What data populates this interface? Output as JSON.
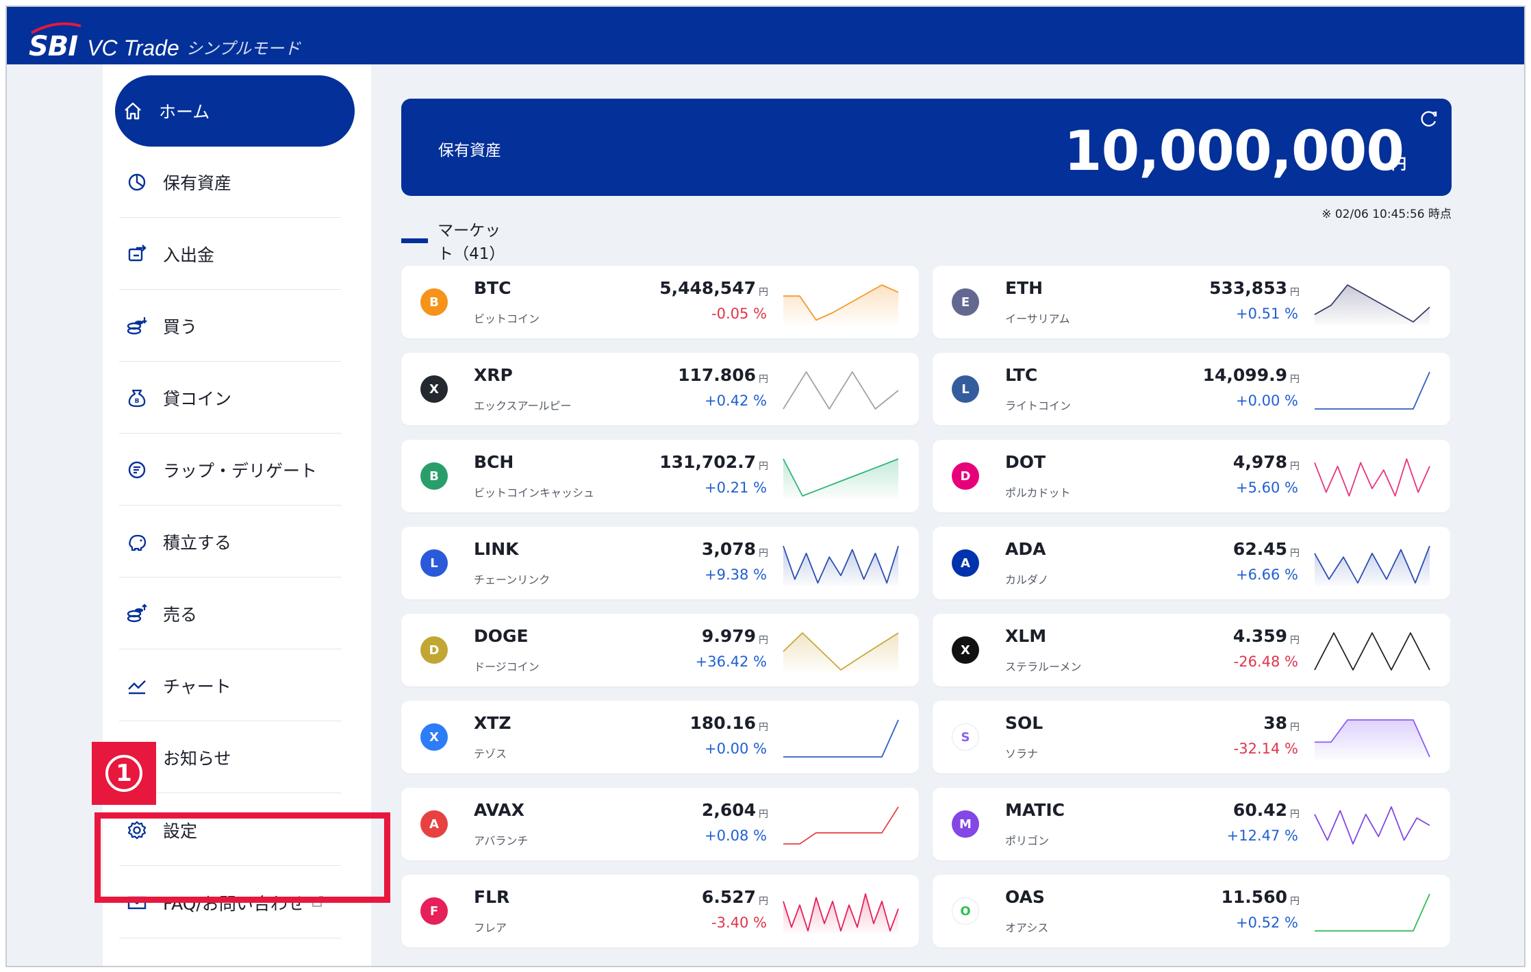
{
  "app": {
    "logo_text": "SBI",
    "brand": "VC Trade",
    "mode": "シンプルモード"
  },
  "sidebar": {
    "items": [
      {
        "label": "ホーム",
        "icon": "home-icon",
        "active": true
      },
      {
        "label": "保有資産",
        "icon": "pie-chart-icon"
      },
      {
        "label": "入出金",
        "icon": "transfer-icon"
      },
      {
        "label": "買う",
        "icon": "coins-buy-icon"
      },
      {
        "label": "貸コイン",
        "icon": "money-bag-icon"
      },
      {
        "label": "ラップ・デリゲート",
        "icon": "wrap-icon"
      },
      {
        "label": "積立する",
        "icon": "piggy-bank-icon"
      },
      {
        "label": "売る",
        "icon": "coins-sell-icon"
      },
      {
        "label": "チャート",
        "icon": "chart-line-icon"
      },
      {
        "label": "お知らせ",
        "icon": "bell-icon"
      },
      {
        "label": "設定",
        "icon": "gear-icon"
      },
      {
        "label": "FAQ/お問い合わせ",
        "icon": "mail-icon"
      }
    ]
  },
  "annotation": {
    "number": "1"
  },
  "assets": {
    "label": "保有資産",
    "value": "10,000,000",
    "unit": "円",
    "timestamp": "※ 02/06 10:45:56 時点"
  },
  "market": {
    "title": "マーケット（41）",
    "yen": "円",
    "coins": [
      {
        "symbol": "BTC",
        "name": "ビットコイン",
        "price": "5,448,547",
        "change": "-0.05 %",
        "dir": "down",
        "color": "#f7931a",
        "line": "#f39a2b",
        "fill": true,
        "spark": [
          0.3,
          0.3,
          0.95,
          0.75,
          0.5,
          0.25,
          0.0,
          0.2
        ]
      },
      {
        "symbol": "ETH",
        "name": "イーサリアム",
        "price": "533,853",
        "change": "+0.51 %",
        "dir": "up",
        "color": "#62688f",
        "line": "#3a3f6b",
        "fill": true,
        "spark": [
          0.8,
          0.55,
          0.0,
          0.25,
          0.5,
          0.75,
          1.0,
          0.6
        ]
      },
      {
        "symbol": "XRP",
        "name": "エックスアールピー",
        "price": "117.806",
        "change": "+0.42 %",
        "dir": "up",
        "color": "#23292f",
        "line": "#9ea3aa",
        "fill": false,
        "spark": [
          1.0,
          0.0,
          1.0,
          0.0,
          1.0,
          0.5
        ]
      },
      {
        "symbol": "LTC",
        "name": "ライトコイン",
        "price": "14,099.9",
        "change": "+0.00 %",
        "dir": "up",
        "color": "#345d9d",
        "line": "#2f5fc2",
        "fill": false,
        "spark": [
          1.0,
          1.0,
          1.0,
          1.0,
          1.0,
          1.0,
          1.0,
          0.0
        ]
      },
      {
        "symbol": "BCH",
        "name": "ビットコインキャッシュ",
        "price": "131,702.7",
        "change": "+0.21 %",
        "dir": "up",
        "color": "#2a9e6a",
        "line": "#2fb37a",
        "fill": true,
        "spark": [
          0.0,
          1.0,
          0.8,
          0.6,
          0.4,
          0.2,
          0.0
        ]
      },
      {
        "symbol": "DOT",
        "name": "ポルカドット",
        "price": "4,978",
        "change": "+5.60 %",
        "dir": "up",
        "color": "#e6007a",
        "line": "#e8337f",
        "fill": false,
        "spark": [
          0.1,
          0.9,
          0.2,
          1.0,
          0.1,
          0.8,
          0.3,
          1.0,
          0.0,
          0.9,
          0.2
        ]
      },
      {
        "symbol": "LINK",
        "name": "チェーンリンク",
        "price": "3,078",
        "change": "+9.38 %",
        "dir": "up",
        "color": "#2a5ada",
        "line": "#2a4fb0",
        "fill": true,
        "spark": [
          0.0,
          0.9,
          0.2,
          1.0,
          0.3,
          0.8,
          0.1,
          0.9,
          0.2,
          1.0,
          0.0
        ]
      },
      {
        "symbol": "ADA",
        "name": "カルダノ",
        "price": "62.45",
        "change": "+6.66 %",
        "dir": "up",
        "color": "#0033ad",
        "line": "#2a4fb0",
        "fill": true,
        "spark": [
          0.2,
          0.9,
          0.3,
          1.0,
          0.2,
          0.9,
          0.1,
          1.0,
          0.0
        ]
      },
      {
        "symbol": "DOGE",
        "name": "ドージコイン",
        "price": "9.979",
        "change": "+36.42 %",
        "dir": "up",
        "color": "#c2a633",
        "line": "#c9a73a",
        "fill": true,
        "spark": [
          0.5,
          0.0,
          0.5,
          1.0,
          0.66,
          0.33,
          0.0
        ]
      },
      {
        "symbol": "XLM",
        "name": "ステラルーメン",
        "price": "4.359",
        "change": "-26.48 %",
        "dir": "down",
        "color": "#111111",
        "line": "#222222",
        "fill": false,
        "spark": [
          1.0,
          0.0,
          1.0,
          0.0,
          1.0,
          0.0,
          1.0
        ]
      },
      {
        "symbol": "XTZ",
        "name": "テゾス",
        "price": "180.16",
        "change": "+0.00 %",
        "dir": "up",
        "color": "#2c7df7",
        "line": "#2f5fc2",
        "fill": false,
        "spark": [
          1.0,
          1.0,
          1.0,
          1.0,
          1.0,
          1.0,
          1.0,
          0.0
        ]
      },
      {
        "symbol": "SOL",
        "name": "ソラナ",
        "price": "38",
        "change": "-32.14 %",
        "dir": "down",
        "color": "#ffffff",
        "line": "#8b5cf6",
        "fill": true,
        "spark": [
          0.6,
          0.6,
          0.0,
          0.0,
          0.0,
          0.0,
          0.0,
          1.0
        ]
      },
      {
        "symbol": "AVAX",
        "name": "アバランチ",
        "price": "2,604",
        "change": "+0.08 %",
        "dir": "up",
        "color": "#e84142",
        "line": "#e84142",
        "fill": false,
        "spark": [
          1.0,
          1.0,
          0.7,
          0.7,
          0.7,
          0.7,
          0.7,
          0.0
        ]
      },
      {
        "symbol": "MATIC",
        "name": "ポリゴン",
        "price": "60.42",
        "change": "+12.47 %",
        "dir": "up",
        "color": "#8247e5",
        "line": "#8247e5",
        "fill": false,
        "spark": [
          0.2,
          0.9,
          0.1,
          1.0,
          0.2,
          0.8,
          0.0,
          0.9,
          0.3,
          0.5
        ]
      },
      {
        "symbol": "FLR",
        "name": "フレア",
        "price": "6.527",
        "change": "-3.40 %",
        "dir": "down",
        "color": "#e62058",
        "line": "#e62058",
        "fill": true,
        "spark": [
          0.2,
          0.9,
          0.3,
          1.0,
          0.1,
          0.8,
          0.2,
          1.0,
          0.3,
          0.9,
          0.0,
          0.8,
          0.2,
          1.0,
          0.4
        ]
      },
      {
        "symbol": "OAS",
        "name": "オアシス",
        "price": "11.560",
        "change": "+0.52 %",
        "dir": "up",
        "color": "#ffffff",
        "line": "#2fbf55",
        "fill": false,
        "spark": [
          1.0,
          1.0,
          1.0,
          1.0,
          1.0,
          1.0,
          1.0,
          0.0
        ]
      }
    ]
  }
}
